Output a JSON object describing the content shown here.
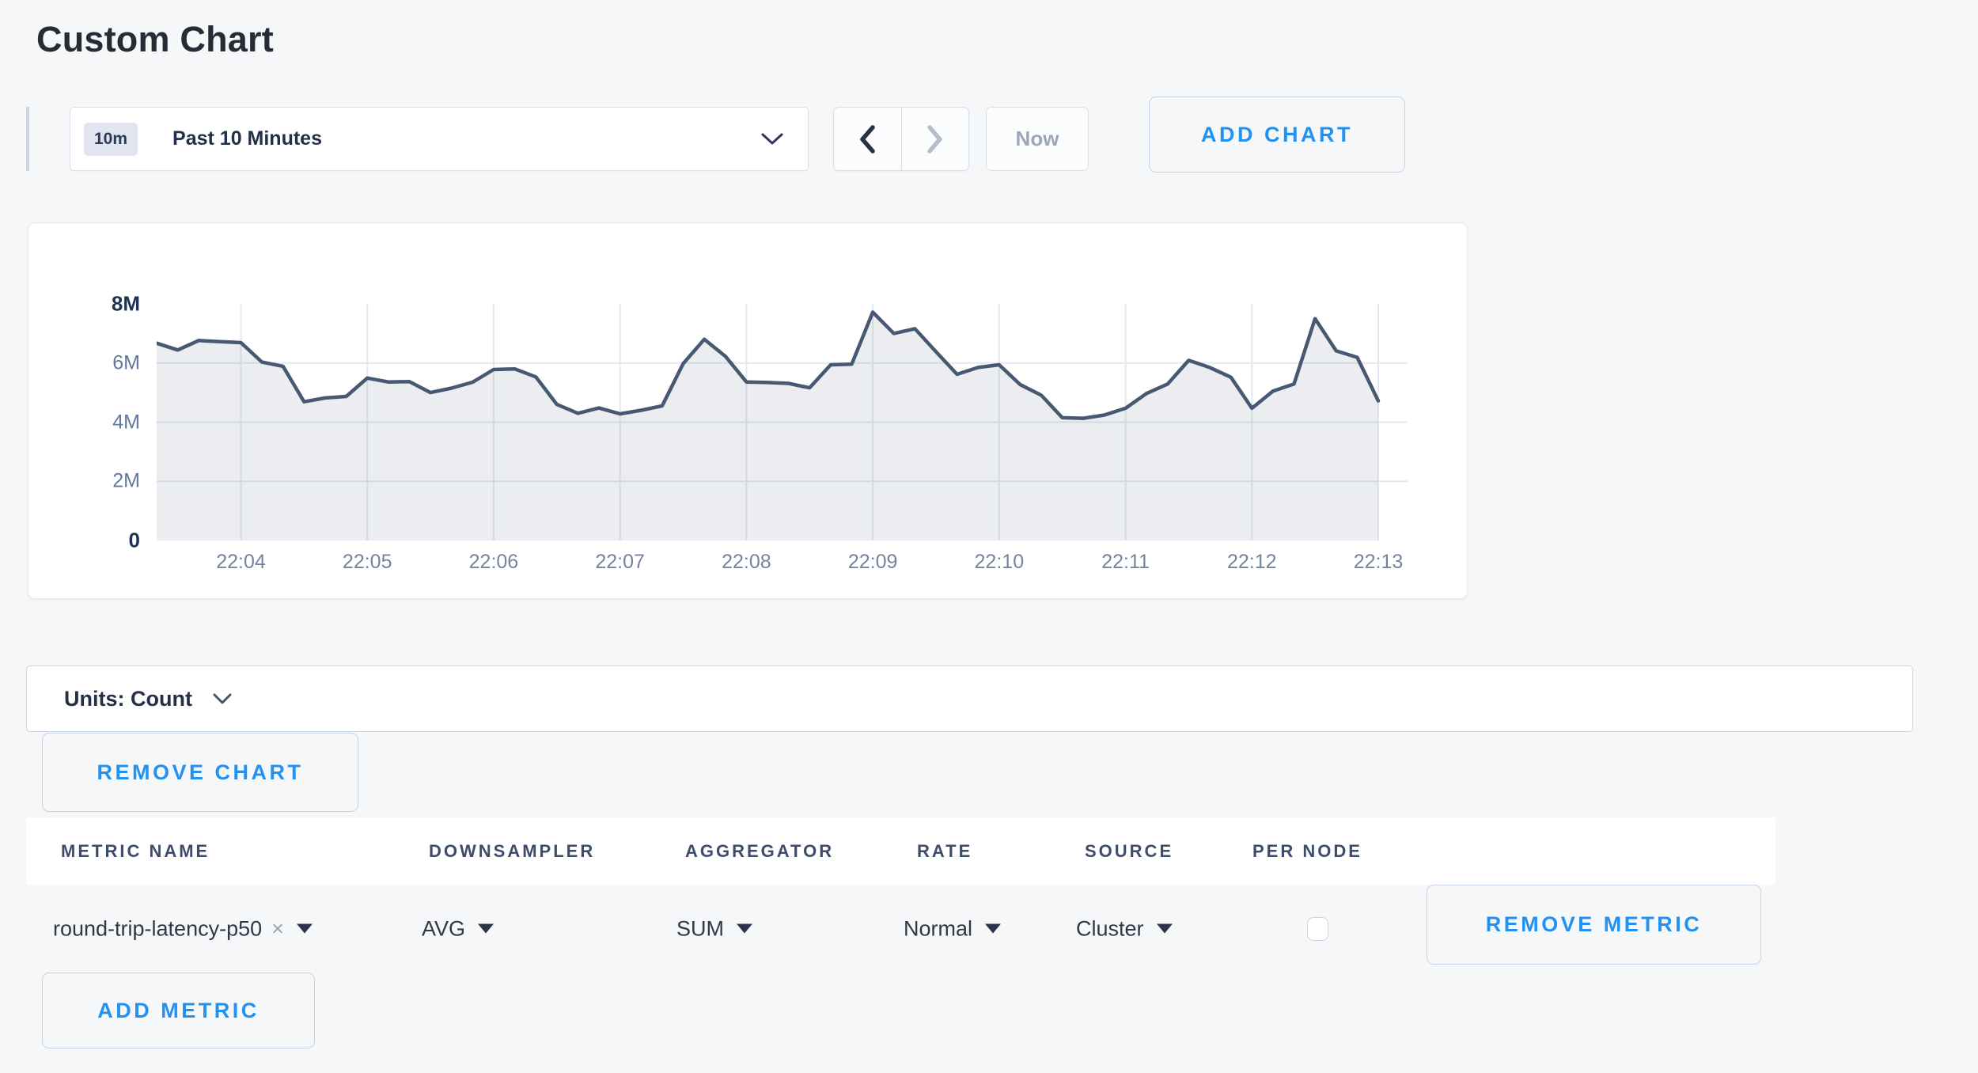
{
  "page": {
    "title": "Custom Chart"
  },
  "toolbar": {
    "time_badge": "10m",
    "time_label": "Past 10 Minutes",
    "prev_label": "previous time window",
    "next_label": "next time window",
    "now_label": "Now",
    "add_chart_label": "ADD CHART"
  },
  "chart_data": {
    "type": "area",
    "title": "",
    "xlabel": "",
    "ylabel": "",
    "y_ticks": [
      "0",
      "2M",
      "4M",
      "6M",
      "8M"
    ],
    "ylim_millions": [
      0,
      8
    ],
    "grid": true,
    "x_ticks": [
      "22:04",
      "22:05",
      "22:06",
      "22:07",
      "22:08",
      "22:09",
      "22:10",
      "22:11",
      "22:12",
      "22:13"
    ],
    "tick_indices": [
      4,
      10,
      16,
      22,
      28,
      34,
      40,
      46,
      52,
      58
    ],
    "series": [
      {
        "name": "round-trip-latency-p50",
        "values_millions": [
          6.67,
          6.44,
          6.76,
          6.72,
          6.69,
          6.03,
          5.89,
          4.69,
          4.82,
          4.87,
          5.49,
          5.36,
          5.37,
          5.0,
          5.15,
          5.35,
          5.78,
          5.8,
          5.53,
          4.6,
          4.3,
          4.48,
          4.28,
          4.4,
          4.55,
          5.98,
          6.8,
          6.23,
          5.36,
          5.34,
          5.31,
          5.16,
          5.94,
          5.96,
          7.72,
          7.0,
          7.16,
          6.38,
          5.62,
          5.85,
          5.94,
          5.27,
          4.91,
          4.15,
          4.13,
          4.24,
          4.47,
          4.97,
          5.29,
          6.09,
          5.85,
          5.52,
          4.47,
          5.05,
          5.29,
          7.5,
          6.41,
          6.19,
          4.72
        ]
      }
    ],
    "legend": "none"
  },
  "units_bar": {
    "label": "Units: Count"
  },
  "buttons": {
    "remove_chart": "REMOVE CHART",
    "remove_metric": "REMOVE METRIC",
    "add_metric": "ADD METRIC"
  },
  "table": {
    "headers": [
      "METRIC NAME",
      "DOWNSAMPLER",
      "AGGREGATOR",
      "RATE",
      "SOURCE",
      "PER NODE"
    ],
    "row": {
      "metric": "round-trip-latency-p50",
      "remove_glyph": "×",
      "downsampler": "AVG",
      "aggregator": "SUM",
      "rate": "Normal",
      "source": "Cluster",
      "per_node_checked": false
    }
  },
  "colors": {
    "accent_blue": "#2191f2",
    "line": "#475872",
    "fill": "rgba(71,88,114,0.11)",
    "gridline": "#e4e9f1",
    "axis_label": "#74849f",
    "axis_label_strong": "#1e3354",
    "page_bg": "#f5f7f9",
    "disabled_gray": "#9ba6b8"
  }
}
